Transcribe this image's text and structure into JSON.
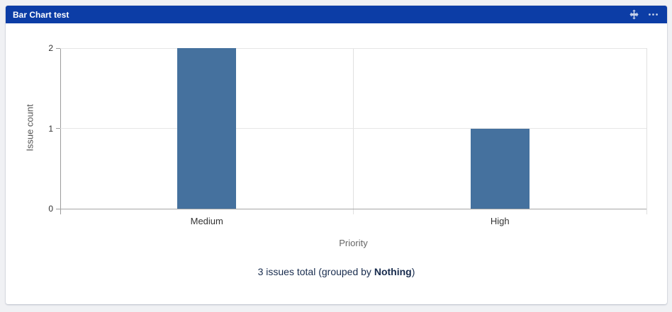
{
  "header": {
    "title": "Bar Chart test",
    "icons": [
      {
        "name": "move-icon"
      },
      {
        "name": "more-options-icon"
      }
    ]
  },
  "chart_data": {
    "type": "bar",
    "categories": [
      "Medium",
      "High"
    ],
    "values": [
      2,
      1
    ],
    "title": "",
    "xlabel": "Priority",
    "ylabel": "Issue count",
    "ylim": [
      0,
      2
    ],
    "yticks": [
      0,
      1,
      2
    ],
    "bar_color": "#45719e",
    "grid": true,
    "legend": false
  },
  "summary": {
    "prefix": "3 issues total (grouped by ",
    "bold": "Nothing",
    "suffix": ")"
  },
  "colors": {
    "header_bg": "#0c3da6",
    "page_bg": "#f0f1f4",
    "card_bg": "#ffffff",
    "bar": "#45719e",
    "summary_text": "#172b4d",
    "axis_line": "#9b9b9b",
    "gridline": "#e6e6e6",
    "tick_label": "#333333",
    "axis_title": "#666666"
  }
}
